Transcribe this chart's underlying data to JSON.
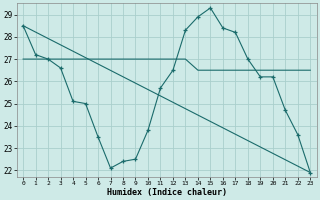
{
  "xlabel": "Humidex (Indice chaleur)",
  "bg_color": "#ceeae7",
  "grid_color": "#aacfcc",
  "line_color": "#1a6b6b",
  "xlim": [
    -0.5,
    23.5
  ],
  "ylim": [
    21.7,
    29.5
  ],
  "yticks": [
    22,
    23,
    24,
    25,
    26,
    27,
    28,
    29
  ],
  "xticks": [
    0,
    1,
    2,
    3,
    4,
    5,
    6,
    7,
    8,
    9,
    10,
    11,
    12,
    13,
    14,
    15,
    16,
    17,
    18,
    19,
    20,
    21,
    22,
    23
  ],
  "series1_x": [
    0,
    1,
    2,
    3,
    4,
    5,
    6,
    7,
    8,
    9,
    10,
    11,
    12,
    13,
    14,
    15,
    16,
    17,
    18,
    19,
    20,
    21,
    22,
    23
  ],
  "series1_y": [
    28.5,
    27.2,
    27.0,
    26.6,
    25.1,
    25.0,
    23.5,
    22.1,
    22.4,
    22.5,
    23.8,
    25.7,
    26.5,
    28.3,
    28.9,
    29.3,
    28.4,
    28.2,
    27.0,
    26.2,
    26.2,
    24.7,
    23.6,
    21.9
  ],
  "series2_x": [
    0,
    1,
    2,
    3,
    4,
    5,
    6,
    7,
    8,
    9,
    10,
    11,
    12,
    13,
    14,
    15,
    16,
    17,
    18,
    19,
    20,
    21,
    22,
    23
  ],
  "series2_y": [
    27.0,
    27.0,
    27.0,
    27.0,
    27.0,
    27.0,
    27.0,
    27.0,
    27.0,
    27.0,
    27.0,
    27.0,
    27.0,
    27.0,
    26.5,
    26.5,
    26.5,
    26.5,
    26.5,
    26.5,
    26.5,
    26.5,
    26.5,
    26.5
  ],
  "series3_x": [
    0,
    23
  ],
  "series3_y": [
    28.5,
    21.9
  ]
}
